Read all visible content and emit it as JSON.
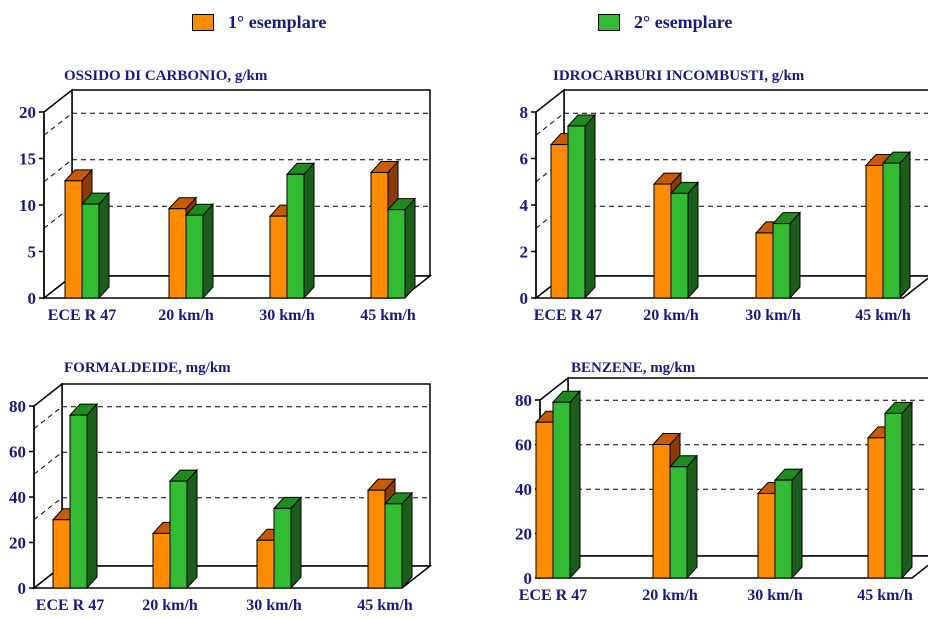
{
  "legend": [
    {
      "label": "1° esemplare",
      "color": "#ff8c00"
    },
    {
      "label": "2° esemplare",
      "color": "#33bb33"
    }
  ],
  "colors": {
    "series1_front": "#ff8c00",
    "series1_top": "#c85a00",
    "series1_side": "#8b3a00",
    "series2_front": "#33bb33",
    "series2_top": "#1f8a1f",
    "series2_side": "#1a5e1a",
    "label_text": "#1a1a7a"
  },
  "chart_data": [
    {
      "type": "bar",
      "title": "OSSIDO DI CARBONIO, g/km",
      "categories": [
        "ECE R 47",
        "20 km/h",
        "30 km/h",
        "45 km/h"
      ],
      "series": [
        {
          "name": "1° esemplare",
          "values": [
            12.6,
            9.6,
            8.8,
            13.5
          ]
        },
        {
          "name": "2° esemplare",
          "values": [
            10.1,
            8.9,
            13.3,
            9.5
          ]
        }
      ],
      "ylim": [
        0,
        20
      ],
      "yticks": [
        "0",
        "5",
        "10",
        "15",
        "20"
      ],
      "ytick_values": [
        0,
        5,
        10,
        15,
        20
      ],
      "grid_values": [
        7.5,
        12.5,
        17.5
      ]
    },
    {
      "type": "bar",
      "title": "IDROCARBURI INCOMBUSTI, g/km",
      "categories": [
        "ECE R 47",
        "20 km/h",
        "30 km/h",
        "45 km/h"
      ],
      "series": [
        {
          "name": "1° esemplare",
          "values": [
            6.6,
            4.9,
            2.8,
            5.7
          ]
        },
        {
          "name": "2° esemplare",
          "values": [
            7.4,
            4.5,
            3.2,
            5.8
          ]
        }
      ],
      "ylim": [
        0,
        8
      ],
      "yticks": [
        "0",
        "2",
        "4",
        "6",
        "8"
      ],
      "ytick_values": [
        0,
        2,
        4,
        6,
        8
      ],
      "grid_values": [
        3,
        5,
        7
      ]
    },
    {
      "type": "bar",
      "title": "FORMALDEIDE, mg/km",
      "categories": [
        "ECE R 47",
        "20 km/h",
        "30 km/h",
        "45 km/h"
      ],
      "series": [
        {
          "name": "1° esemplare",
          "values": [
            30,
            24,
            21,
            43
          ]
        },
        {
          "name": "2° esemplare",
          "values": [
            76,
            47,
            35,
            37
          ]
        }
      ],
      "ylim": [
        0,
        80
      ],
      "yticks": [
        "0",
        "20",
        "40",
        "60",
        "80"
      ],
      "ytick_values": [
        0,
        20,
        40,
        60,
        80
      ],
      "grid_values": [
        30,
        50,
        70
      ]
    },
    {
      "type": "bar",
      "title": "BENZENE, mg/km",
      "categories": [
        "ECE R 47",
        "20 km/h",
        "30 km/h",
        "45 km/h"
      ],
      "series": [
        {
          "name": "1° esemplare",
          "values": [
            70,
            60,
            38,
            63
          ]
        },
        {
          "name": "2° esemplare",
          "values": [
            79,
            50,
            44,
            74
          ]
        }
      ],
      "ylim": [
        0,
        80
      ],
      "yticks": [
        "0",
        "20",
        "40",
        "60",
        "80"
      ],
      "ytick_values": [
        0,
        20,
        40,
        60,
        80
      ],
      "grid_values": [
        30,
        50,
        70
      ]
    }
  ]
}
